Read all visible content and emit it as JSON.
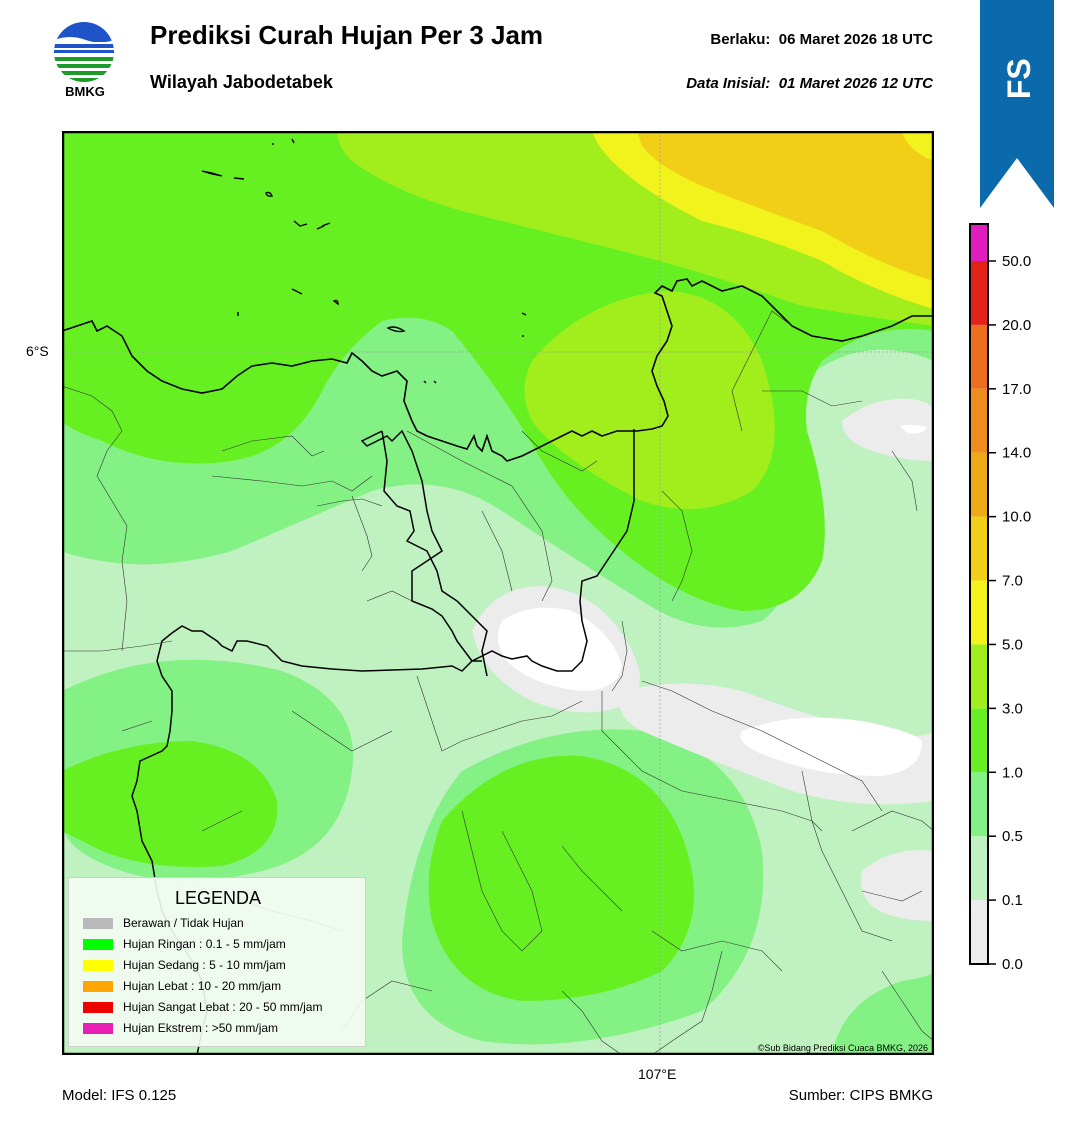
{
  "header": {
    "logo_text": "BMKG",
    "title": "Prediksi Curah Hujan Per 3 Jam",
    "subtitle": "Wilayah Jabodetabek",
    "valid_label": "Berlaku:",
    "valid_value": "06 Maret 2026 18 UTC",
    "init_label": "Data Inisial:",
    "init_value": "01 Maret 2026 12 UTC"
  },
  "ribbon": {
    "text": "IFS",
    "color": "#0b6aab"
  },
  "map": {
    "lat_label": "6°S",
    "lon_label": "107°E",
    "copyright": "©Sub Bidang Prediksi Cuaca BMKG, 2026"
  },
  "legend": {
    "title": "LEGENDA",
    "items": [
      {
        "label": "Berawan / Tidak Hujan",
        "color": "#b9b9b9"
      },
      {
        "label": "Hujan Ringan : 0.1 - 5 mm/jam",
        "color": "#00ff00"
      },
      {
        "label": "Hujan Sedang : 5 - 10 mm/jam",
        "color": "#ffff00"
      },
      {
        "label": "Hujan Lebat : 10 - 20 mm/jam",
        "color": "#ffa500"
      },
      {
        "label": "Hujan Sangat Lebat : 20 - 50 mm/jam",
        "color": "#ee0000"
      },
      {
        "label": "Hujan Ekstrem : >50 mm/jam",
        "color": "#e91eb5"
      }
    ]
  },
  "colorbar": {
    "ticks": [
      "0.0",
      "0.1",
      "0.5",
      "1.0",
      "3.0",
      "5.0",
      "7.0",
      "10.0",
      "14.0",
      "17.0",
      "20.0",
      "50.0"
    ],
    "colors": [
      "#ececec",
      "#c0f1c0",
      "#84f184",
      "#66f022",
      "#a2ee1c",
      "#f2f21c",
      "#f1cf16",
      "#eeaa16",
      "#ee8c1e",
      "#ec6e1e",
      "#e42218",
      "#e01ec0"
    ]
  },
  "footer": {
    "model": "Model: IFS 0.125",
    "source": "Sumber: CIPS BMKG"
  }
}
